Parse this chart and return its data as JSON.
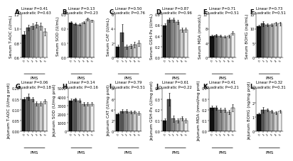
{
  "panels": [
    {
      "label": "A",
      "title_line1": "Linear P=0.41",
      "title_line2": "Quadratic P=0.63",
      "ylabel": "Serum T-AOC (U/mL)",
      "ylim": [
        0.6,
        1.2
      ],
      "yticks": [
        0.6,
        0.8,
        1.0,
        1.2
      ],
      "values": [
        0.92,
        1.02,
        1.04,
        1.06,
        1.04,
        0.96
      ],
      "errors": [
        0.05,
        0.04,
        0.04,
        0.04,
        0.05,
        0.05
      ]
    },
    {
      "label": "B",
      "title_line1": "Linear P=0.13",
      "title_line2": "Quadratic P=0.23",
      "ylabel": "Serum SOD (U/mL)",
      "ylim": [
        0.0,
        0.3
      ],
      "yticks": [
        0.0,
        0.1,
        0.2,
        0.3
      ],
      "values": [
        0.245,
        0.235,
        0.23,
        0.245,
        0.265,
        0.255
      ],
      "errors": [
        0.008,
        0.008,
        0.008,
        0.008,
        0.01,
        0.008
      ]
    },
    {
      "label": "C",
      "title_line1": "Linear P=0.50",
      "title_line2": "Quadratic P=0.76",
      "ylabel": "Serum CAT (U/mL)",
      "ylim": [
        0,
        6
      ],
      "yticks": [
        0,
        2,
        4,
        6
      ],
      "values": [
        1.5,
        3.5,
        1.5,
        1.6,
        1.8,
        2.0
      ],
      "errors": [
        0.3,
        1.2,
        0.3,
        0.3,
        0.4,
        0.4
      ]
    },
    {
      "label": "D",
      "title_line1": "Linear P=0.87",
      "title_line2": "Quadratic P=0.96",
      "ylabel": "Serum GSH-Px (U/mL)",
      "ylim": [
        0.0,
        0.8
      ],
      "yticks": [
        0.0,
        0.2,
        0.4,
        0.6,
        0.8
      ],
      "values": [
        0.6,
        0.7,
        0.7,
        0.66,
        0.52,
        0.52
      ],
      "errors": [
        0.04,
        0.04,
        0.04,
        0.04,
        0.04,
        0.04
      ]
    },
    {
      "label": "E",
      "title_line1": "Linear P=0.71",
      "title_line2": "Quadratic P=0.51",
      "ylabel": "Serum MDA (mmol/L)",
      "ylim": [
        0,
        12
      ],
      "yticks": [
        0,
        4,
        8,
        12
      ],
      "values": [
        6.0,
        6.2,
        6.0,
        5.8,
        6.0,
        6.8
      ],
      "errors": [
        0.4,
        0.4,
        0.3,
        0.3,
        0.4,
        0.5
      ]
    },
    {
      "label": "F",
      "title_line1": "Linear P=0.73",
      "title_line2": "Quadratic P=0.51",
      "ylabel": "Serum 8OHG (ng/mL)",
      "ylim": [
        0,
        15
      ],
      "yticks": [
        0,
        5,
        10,
        15
      ],
      "values": [
        11.0,
        11.8,
        11.5,
        11.5,
        11.8,
        11.8
      ],
      "errors": [
        0.5,
        0.8,
        0.5,
        0.5,
        0.6,
        0.6
      ]
    },
    {
      "label": "G",
      "title_line1": "Linear P=0.06",
      "title_line2": "Quadratic P=0.18",
      "ylabel": "Jejunum T-AOC (U/mg prot)",
      "ylim": [
        0.0,
        0.2
      ],
      "yticks": [
        0.0,
        0.05,
        0.1,
        0.15,
        0.2
      ],
      "values": [
        0.15,
        0.16,
        0.15,
        0.13,
        0.13,
        0.14
      ],
      "errors": [
        0.01,
        0.015,
        0.01,
        0.01,
        0.01,
        0.01
      ]
    },
    {
      "label": "H",
      "title_line1": "Linear P=0.14",
      "title_line2": "Quadratic P=0.16",
      "ylabel": "Jejunum SOD (U/mg prot)",
      "ylim": [
        0,
        5000
      ],
      "yticks": [
        0,
        1000,
        2000,
        3000,
        4000,
        5000
      ],
      "values": [
        3600,
        3700,
        3600,
        3200,
        3200,
        3200
      ],
      "errors": [
        200,
        200,
        200,
        200,
        200,
        200
      ]
    },
    {
      "label": "I",
      "title_line1": "Linear P=0.79",
      "title_line2": "Quadratic P=0.51",
      "ylabel": "Jejunum CAT (U/mg prot)",
      "ylim": [
        0,
        8
      ],
      "yticks": [
        0,
        2,
        4,
        6,
        8
      ],
      "values": [
        3.2,
        3.8,
        3.8,
        3.6,
        3.6,
        3.4
      ],
      "errors": [
        0.3,
        0.3,
        0.3,
        0.3,
        0.3,
        0.3
      ]
    },
    {
      "label": "J",
      "title_line1": "Linear P=0.61",
      "title_line2": "Quadratic P=0.22",
      "ylabel": "Jejunum GSH-Px (U/mg prot)",
      "ylim": [
        0.0,
        0.4
      ],
      "yticks": [
        0.0,
        0.1,
        0.2,
        0.3,
        0.4
      ],
      "values": [
        0.1,
        0.3,
        0.12,
        0.1,
        0.12,
        0.1
      ],
      "errors": [
        0.02,
        0.06,
        0.03,
        0.02,
        0.02,
        0.02
      ]
    },
    {
      "label": "K",
      "title_line1": "Linear P=0.41",
      "title_line2": "Quadratic P=0.21",
      "ylabel": "Jejunum MDA (nmol/mg prot)",
      "ylim": [
        0.0,
        0.4
      ],
      "yticks": [
        0.0,
        0.1,
        0.2,
        0.3,
        0.4
      ],
      "values": [
        0.22,
        0.22,
        0.2,
        0.2,
        0.18,
        0.22
      ],
      "errors": [
        0.02,
        0.02,
        0.02,
        0.02,
        0.02,
        0.03
      ]
    },
    {
      "label": "L",
      "title_line1": "Linear P=0.32",
      "title_line2": "Quadratic P=0.31",
      "ylabel": "Jejunum 8OHG (ng/mg prot)",
      "ylim": [
        0,
        3
      ],
      "yticks": [
        0,
        1,
        2,
        3
      ],
      "values": [
        1.2,
        1.5,
        1.5,
        1.4,
        1.3,
        1.4
      ],
      "errors": [
        0.1,
        0.2,
        0.1,
        0.1,
        0.1,
        0.1
      ]
    }
  ],
  "bar_colors": [
    "#111111",
    "#555555",
    "#888888",
    "#aaaaaa",
    "#cccccc",
    "#eeeeee"
  ],
  "bar_edge_color": "#000000",
  "xlabel": "PMS",
  "xtick_labels": [
    "0",
    "1",
    "2",
    "3",
    "4",
    "5"
  ],
  "background_color": "#ffffff",
  "title_fontsize": 3.8,
  "ylabel_fontsize": 4.2,
  "tick_fontsize": 3.5,
  "xtick_fontsize": 3.0,
  "label_fontsize": 6.0,
  "bar_width": 0.12,
  "n_rows": 2,
  "n_cols": 6
}
